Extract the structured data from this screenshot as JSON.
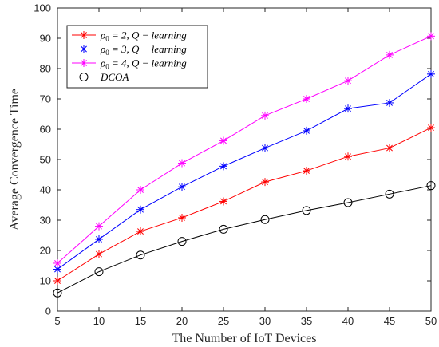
{
  "chart_data": {
    "type": "line",
    "title": "",
    "xlabel": "The Number of IoT Devices",
    "ylabel": "Average Convergence Time",
    "xlim": [
      5,
      50
    ],
    "ylim": [
      0,
      100
    ],
    "x": [
      5,
      10,
      15,
      20,
      25,
      30,
      35,
      40,
      45,
      50
    ],
    "x_ticks": [
      5,
      10,
      15,
      20,
      25,
      30,
      35,
      40,
      45,
      50
    ],
    "y_ticks": [
      0,
      10,
      20,
      30,
      40,
      50,
      60,
      70,
      80,
      90,
      100
    ],
    "grid": false,
    "legend_position": "top-left",
    "series": [
      {
        "name": "ρ0 = 2, Q − learning",
        "name_main": "ρ",
        "name_sub": "0",
        "name_rest": " = 2, Q − learning",
        "color": "#ff0000",
        "marker": "asterisk",
        "values": [
          10,
          18.8,
          26.3,
          30.8,
          36.2,
          42.6,
          46.3,
          51.0,
          53.8,
          60.5
        ]
      },
      {
        "name": "ρ0 = 3, Q − learning",
        "name_main": "ρ",
        "name_sub": "0",
        "name_rest": " = 3, Q − learning",
        "color": "#0000ff",
        "marker": "asterisk",
        "values": [
          13.8,
          23.7,
          33.5,
          41.0,
          47.8,
          53.8,
          59.5,
          66.8,
          68.7,
          78.2
        ]
      },
      {
        "name": "ρ0 = 4, Q − learning",
        "name_main": "ρ",
        "name_sub": "0",
        "name_rest": " = 4, Q − learning",
        "color": "#ff00ff",
        "marker": "asterisk",
        "values": [
          15.8,
          28.0,
          40.0,
          48.8,
          56.2,
          64.5,
          70.0,
          76.0,
          84.5,
          90.7
        ]
      },
      {
        "name": "DCOA",
        "name_main": "DCOA",
        "name_sub": "",
        "name_rest": "",
        "color": "#000000",
        "marker": "circle",
        "values": [
          6.0,
          13.0,
          18.5,
          23.0,
          27.0,
          30.2,
          33.2,
          35.8,
          38.6,
          41.4
        ]
      }
    ]
  }
}
